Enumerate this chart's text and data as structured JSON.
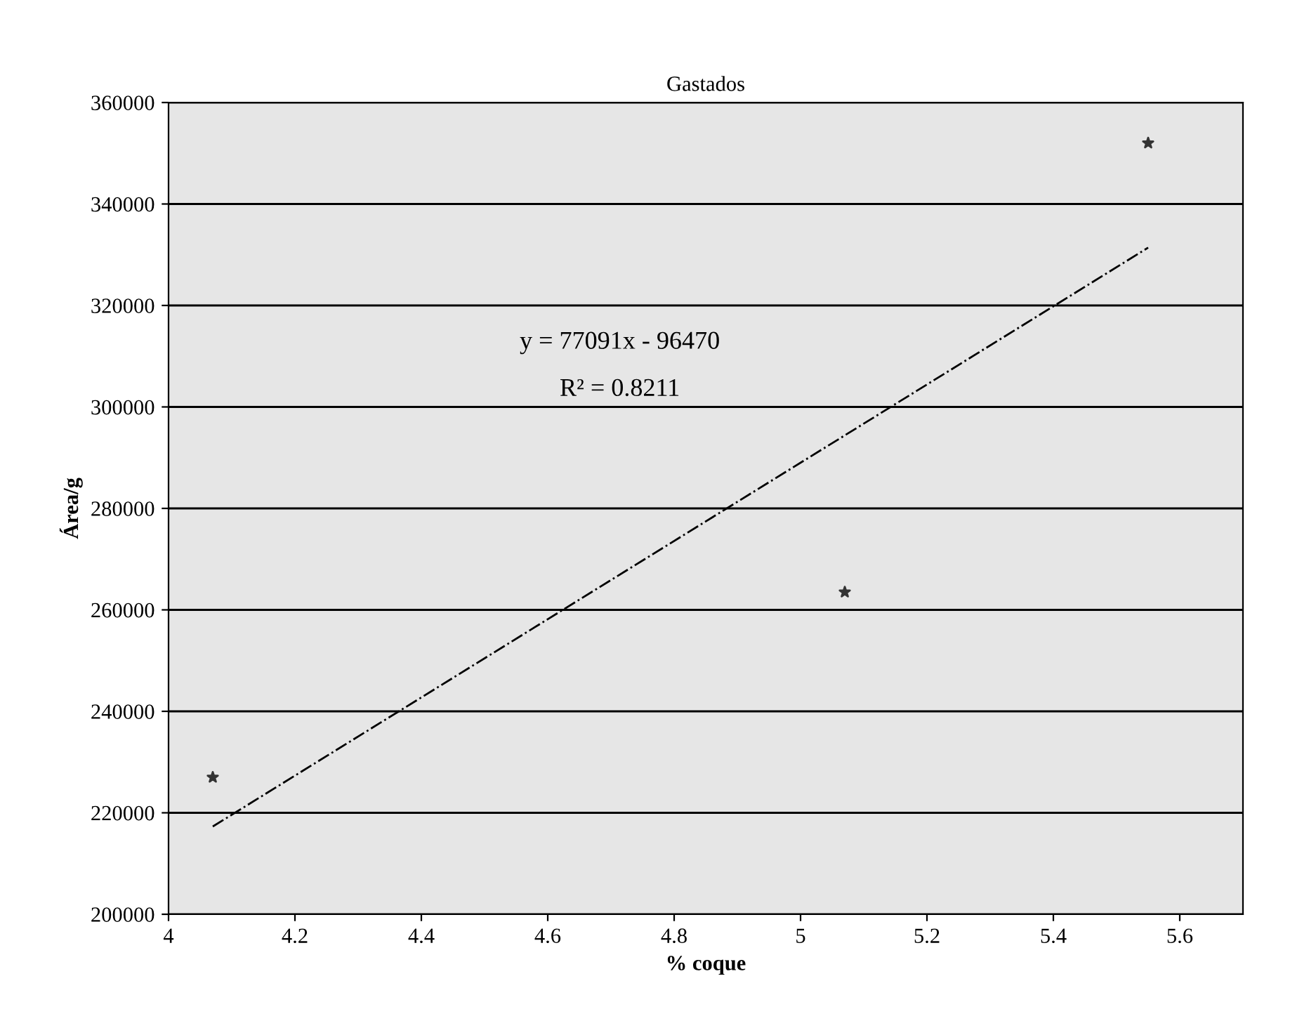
{
  "chart_data": {
    "type": "scatter",
    "title": "Gastados",
    "xlabel": "% coque",
    "ylabel": "Área/g",
    "series": [
      {
        "color": "#333333",
        "x": [
          4.07,
          5.07,
          5.55
        ],
        "values": [
          227000,
          263500,
          352000
        ],
        "marker": "star"
      },
      {
        "type": "line",
        "color": "#000000",
        "x": [
          4.07,
          5.55
        ],
        "values": [
          217300,
          331400
        ],
        "line_style": "dashed",
        "marker": "none"
      }
    ],
    "annotations": [
      "y = 77091x - 96470",
      "R² = 0.8211"
    ],
    "xlim": [
      4,
      5.7
    ],
    "xticks": [
      4,
      4.2,
      4.4,
      4.6,
      4.8,
      5,
      5.2,
      5.4,
      5.6
    ],
    "ylim": [
      200000,
      360000
    ],
    "yticks": [
      200000,
      220000,
      240000,
      260000,
      280000,
      300000,
      320000,
      340000,
      360000
    ],
    "grid": "y",
    "legend": false
  }
}
